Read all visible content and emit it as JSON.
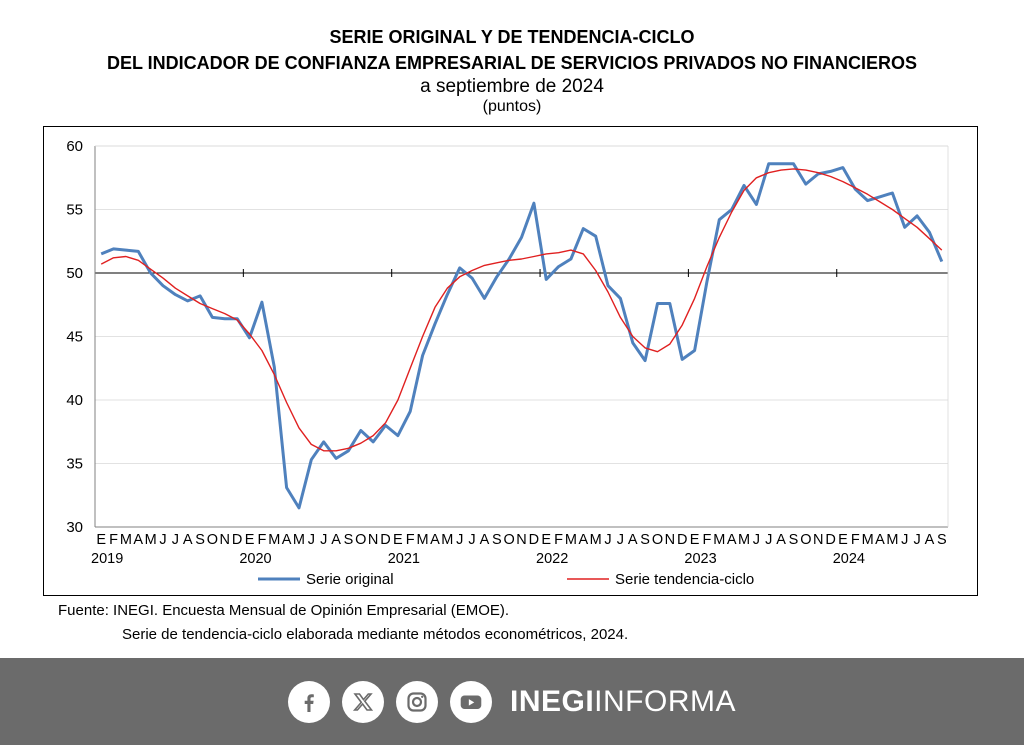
{
  "header": {
    "title_line1": "SERIE ORIGINAL Y DE TENDENCIA-CICLO",
    "title_line2": "DEL INDICADOR DE CONFIANZA EMPRESARIAL DE SERVICIOS PRIVADOS NO FINANCIEROS",
    "subtitle": "a septiembre de 2024",
    "units": "(puntos)"
  },
  "source": {
    "line1": "Fuente: INEGI. Encuesta Mensual de Opinión Empresarial (EMOE).",
    "line2": "Serie de tendencia-ciclo elaborada mediante métodos econométricos, 2024."
  },
  "footer": {
    "brand_bold": "INEGI",
    "brand_regular": "INFORMA",
    "icons": [
      "facebook-icon",
      "x-icon",
      "instagram-icon",
      "youtube-icon"
    ]
  },
  "chart_data": {
    "type": "line",
    "ylim": [
      30,
      60
    ],
    "yticks": [
      30,
      35,
      40,
      45,
      50,
      55,
      60
    ],
    "reference_line": 50,
    "grid": true,
    "legend_position": "bottom",
    "month_labels": [
      "E",
      "F",
      "M",
      "A",
      "M",
      "J",
      "J",
      "A",
      "S",
      "O",
      "N",
      "D"
    ],
    "years": [
      "2019",
      "2020",
      "2021",
      "2022",
      "2023",
      "2024"
    ],
    "colors": {
      "original": "#4f81bd",
      "trend": "#e02020"
    },
    "series": [
      {
        "name": "Serie original",
        "values": [
          51.5,
          51.9,
          51.8,
          51.7,
          50.0,
          49.0,
          48.3,
          47.8,
          48.2,
          46.5,
          46.4,
          46.4,
          44.9,
          47.7,
          42.6,
          33.1,
          31.5,
          35.3,
          36.7,
          35.4,
          36.0,
          37.6,
          36.7,
          38.0,
          37.2,
          39.1,
          43.5,
          46.0,
          48.3,
          50.4,
          49.6,
          48.0,
          49.7,
          51.1,
          52.8,
          55.5,
          49.5,
          50.5,
          51.1,
          53.5,
          52.9,
          49.0,
          48.0,
          44.5,
          43.1,
          47.6,
          47.6,
          43.2,
          43.9,
          49.3,
          54.2,
          55.0,
          56.9,
          55.4,
          58.6,
          58.6,
          58.6,
          57.0,
          57.8,
          58.0,
          58.3,
          56.6,
          55.7,
          56.0,
          56.3,
          53.6,
          54.5,
          53.2,
          50.9
        ]
      },
      {
        "name": "Serie tendencia-ciclo",
        "values": [
          50.7,
          51.2,
          51.3,
          51.0,
          50.3,
          49.6,
          48.8,
          48.2,
          47.6,
          47.2,
          46.8,
          46.3,
          45.2,
          43.9,
          42.0,
          39.8,
          37.8,
          36.5,
          36.0,
          36.0,
          36.2,
          36.6,
          37.2,
          38.2,
          40.0,
          42.5,
          45.0,
          47.3,
          48.8,
          49.7,
          50.2,
          50.6,
          50.8,
          51.0,
          51.1,
          51.3,
          51.5,
          51.6,
          51.8,
          51.5,
          50.2,
          48.5,
          46.5,
          45.0,
          44.1,
          43.8,
          44.4,
          45.9,
          48.0,
          50.5,
          52.8,
          54.8,
          56.5,
          57.5,
          57.9,
          58.1,
          58.2,
          58.1,
          57.9,
          57.6,
          57.2,
          56.7,
          56.2,
          55.6,
          55.0,
          54.3,
          53.6,
          52.7,
          51.8
        ]
      }
    ]
  }
}
